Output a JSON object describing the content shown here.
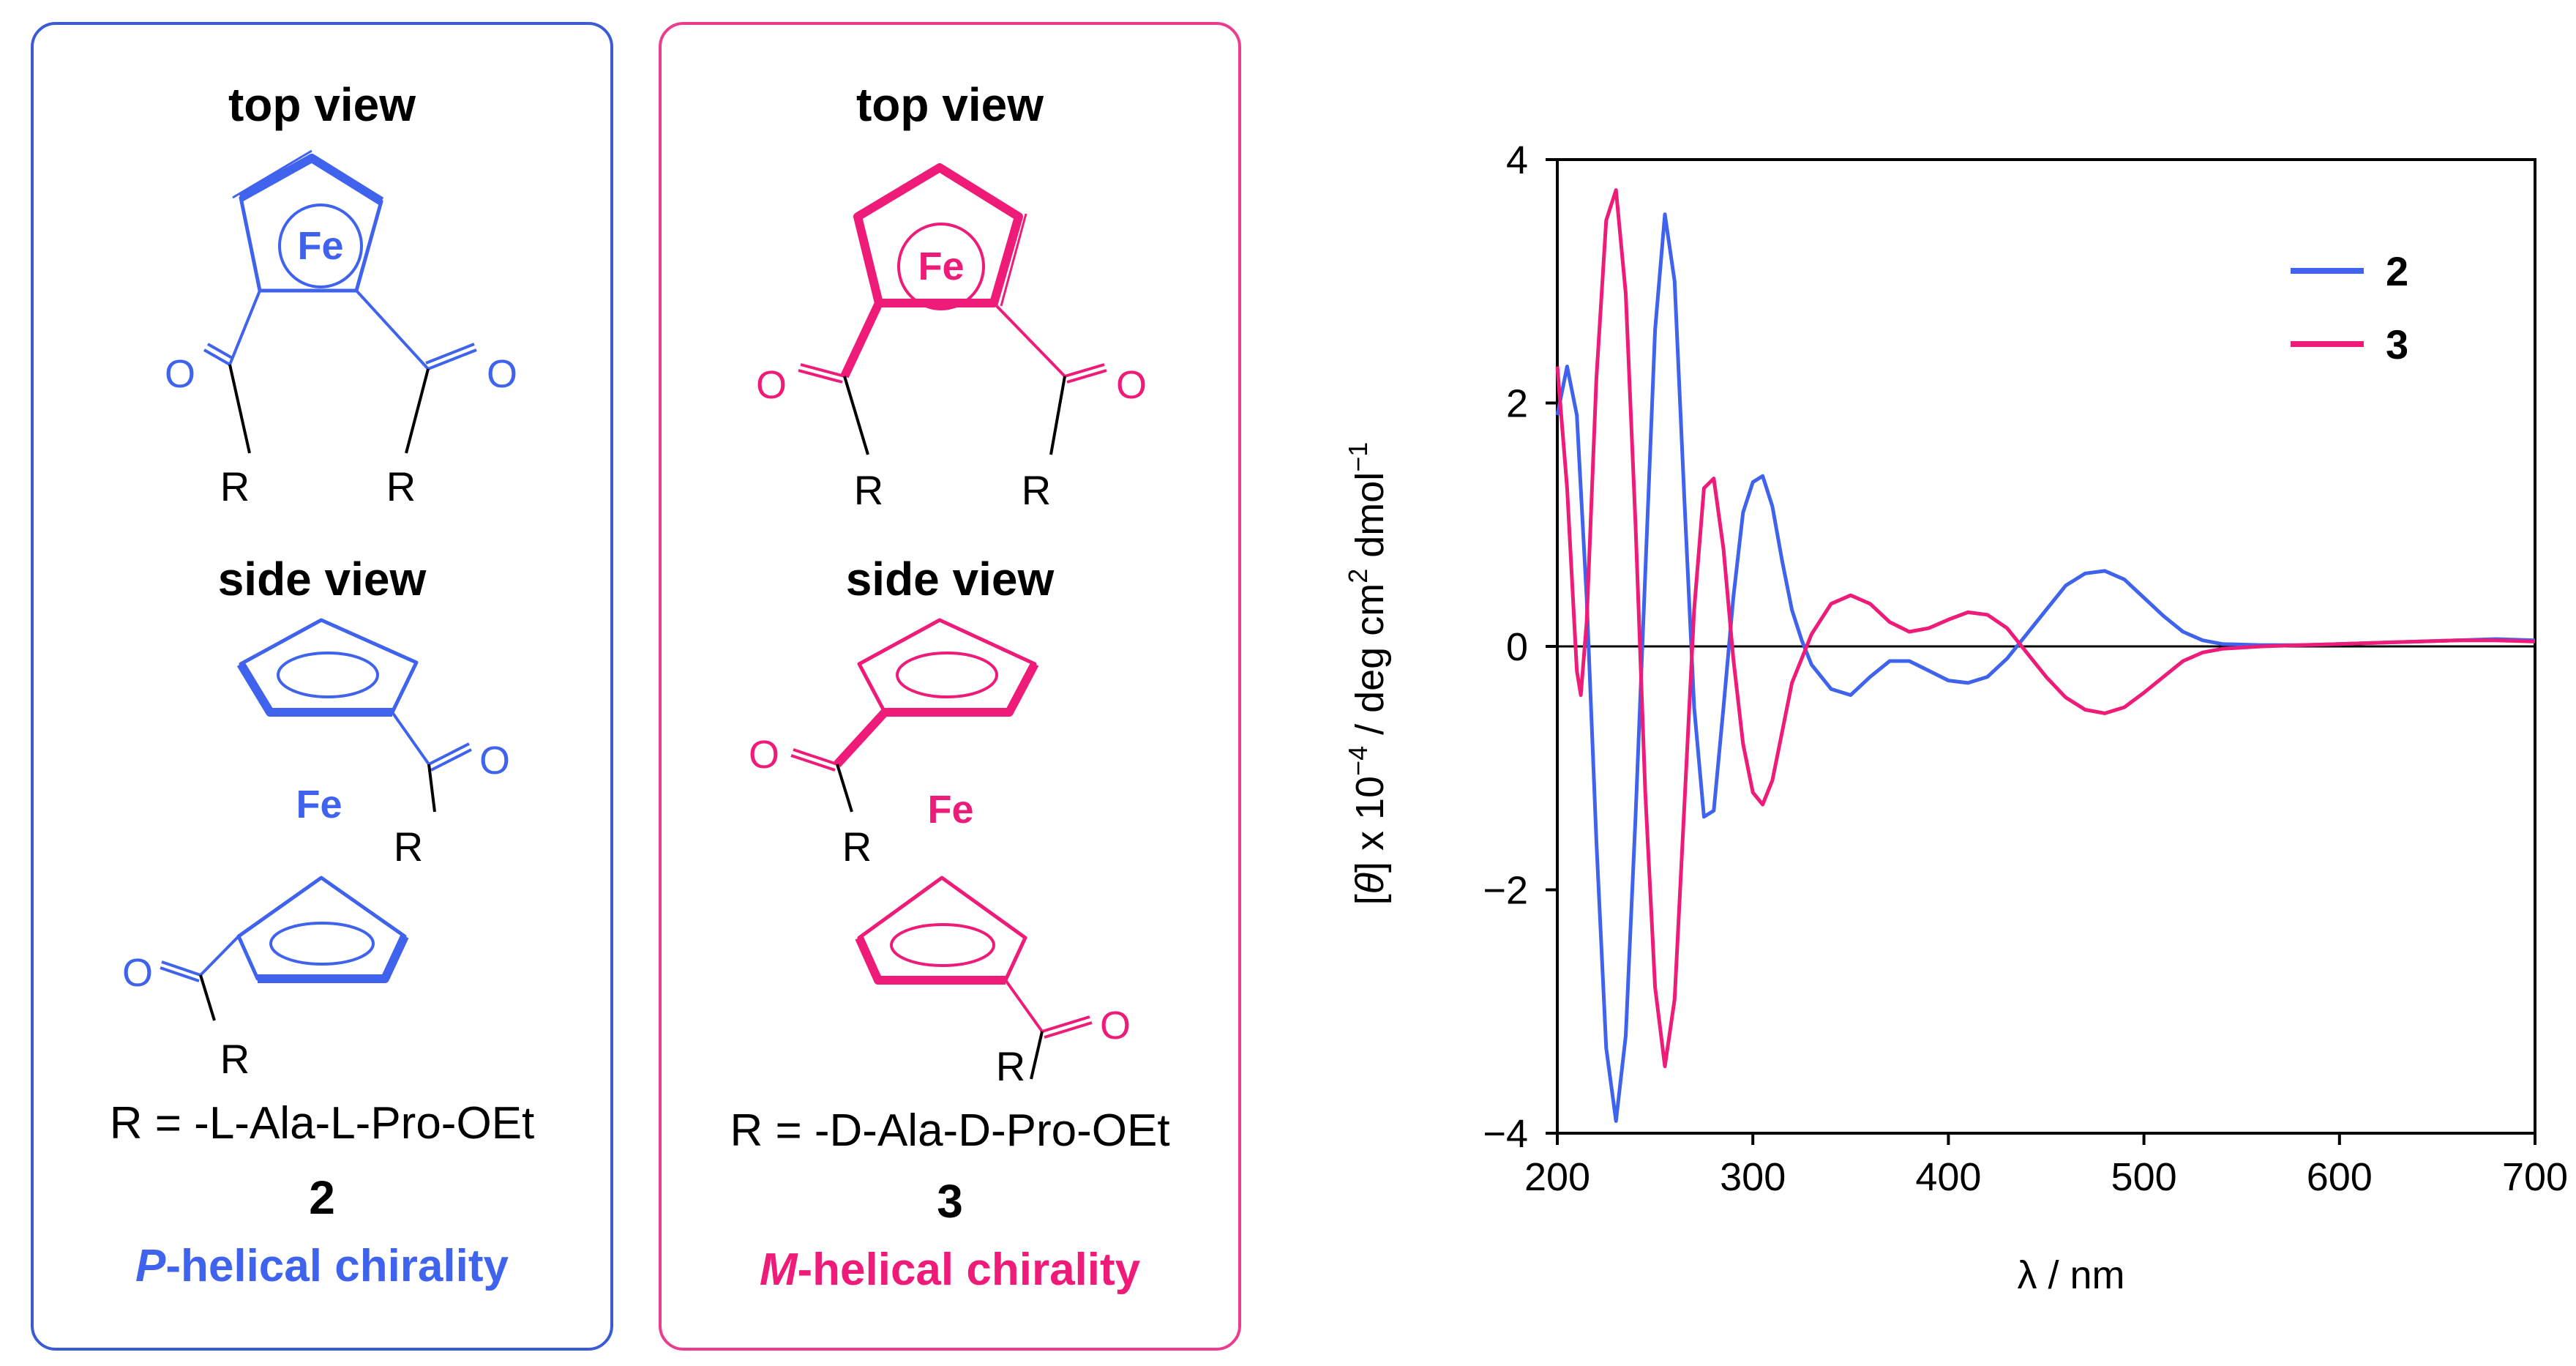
{
  "colors": {
    "blue": "#3f63ec",
    "pink": "#ee1c78",
    "blue_border": "#3a5ad6",
    "pink_border": "#ea3d8d"
  },
  "left_panel": {
    "top_view_label": "top view",
    "side_view_label": "side view",
    "fe_label": "Fe",
    "oxygen": "O",
    "r_group": "R",
    "r_definition": "R = -L-Ala-L-Pro-OEt",
    "compound_number": "2",
    "chirality_prefix": "P",
    "chirality_suffix": "-helical chirality"
  },
  "right_panel": {
    "top_view_label": "top view",
    "side_view_label": "side view",
    "fe_label": "Fe",
    "oxygen": "O",
    "r_group": "R",
    "r_definition": "R = -D-Ala-D-Pro-OEt",
    "compound_number": "3",
    "chirality_prefix": "M",
    "chirality_suffix": "-helical chirality"
  },
  "chart_data": {
    "type": "line",
    "title": "",
    "xlabel": "λ / nm",
    "ylabel_parts": [
      "[",
      "θ",
      "] x 10",
      "−4",
      " / deg cm",
      "2",
      " dmol",
      "−1"
    ],
    "xlim": [
      200,
      700
    ],
    "ylim": [
      -4,
      4
    ],
    "xticks": [
      200,
      300,
      400,
      500,
      600,
      700
    ],
    "yticks": [
      -4,
      -2,
      0,
      2,
      4
    ],
    "ytick_labels": [
      "−4",
      "−2",
      "0",
      "2",
      "4"
    ],
    "legend_position": "top-right",
    "series": [
      {
        "name": "2",
        "color": "#3f63ec",
        "points": [
          [
            200,
            1.9
          ],
          [
            205,
            2.3
          ],
          [
            210,
            1.9
          ],
          [
            215,
            0.4
          ],
          [
            220,
            -1.6
          ],
          [
            225,
            -3.3
          ],
          [
            230,
            -3.9
          ],
          [
            235,
            -3.2
          ],
          [
            240,
            -1.4
          ],
          [
            245,
            0.6
          ],
          [
            250,
            2.6
          ],
          [
            255,
            3.55
          ],
          [
            260,
            3.0
          ],
          [
            265,
            1.2
          ],
          [
            270,
            -0.5
          ],
          [
            275,
            -1.4
          ],
          [
            280,
            -1.35
          ],
          [
            285,
            -0.5
          ],
          [
            290,
            0.4
          ],
          [
            295,
            1.1
          ],
          [
            300,
            1.35
          ],
          [
            305,
            1.4
          ],
          [
            310,
            1.15
          ],
          [
            315,
            0.7
          ],
          [
            320,
            0.3
          ],
          [
            325,
            0.05
          ],
          [
            330,
            -0.15
          ],
          [
            340,
            -0.35
          ],
          [
            350,
            -0.4
          ],
          [
            360,
            -0.25
          ],
          [
            370,
            -0.12
          ],
          [
            380,
            -0.12
          ],
          [
            390,
            -0.2
          ],
          [
            400,
            -0.28
          ],
          [
            410,
            -0.3
          ],
          [
            420,
            -0.25
          ],
          [
            430,
            -0.1
          ],
          [
            440,
            0.1
          ],
          [
            450,
            0.3
          ],
          [
            460,
            0.5
          ],
          [
            470,
            0.6
          ],
          [
            480,
            0.62
          ],
          [
            490,
            0.55
          ],
          [
            500,
            0.4
          ],
          [
            510,
            0.25
          ],
          [
            520,
            0.12
          ],
          [
            530,
            0.05
          ],
          [
            540,
            0.02
          ],
          [
            560,
            0.01
          ],
          [
            580,
            0.01
          ],
          [
            600,
            0.02
          ],
          [
            620,
            0.03
          ],
          [
            640,
            0.04
          ],
          [
            660,
            0.05
          ],
          [
            680,
            0.06
          ],
          [
            700,
            0.05
          ]
        ]
      },
      {
        "name": "3",
        "color": "#ee1c78",
        "points": [
          [
            200,
            2.3
          ],
          [
            205,
            1.3
          ],
          [
            210,
            -0.2
          ],
          [
            212,
            -0.4
          ],
          [
            215,
            0.2
          ],
          [
            220,
            2.2
          ],
          [
            225,
            3.5
          ],
          [
            230,
            3.75
          ],
          [
            235,
            2.9
          ],
          [
            240,
            1.0
          ],
          [
            245,
            -1.2
          ],
          [
            250,
            -2.8
          ],
          [
            255,
            -3.45
          ],
          [
            260,
            -2.9
          ],
          [
            265,
            -1.3
          ],
          [
            270,
            0.3
          ],
          [
            275,
            1.3
          ],
          [
            280,
            1.38
          ],
          [
            285,
            0.8
          ],
          [
            290,
            -0.1
          ],
          [
            295,
            -0.8
          ],
          [
            300,
            -1.2
          ],
          [
            305,
            -1.3
          ],
          [
            310,
            -1.1
          ],
          [
            315,
            -0.7
          ],
          [
            320,
            -0.3
          ],
          [
            330,
            0.1
          ],
          [
            340,
            0.35
          ],
          [
            350,
            0.42
          ],
          [
            360,
            0.35
          ],
          [
            370,
            0.2
          ],
          [
            380,
            0.12
          ],
          [
            390,
            0.15
          ],
          [
            400,
            0.22
          ],
          [
            410,
            0.28
          ],
          [
            420,
            0.26
          ],
          [
            430,
            0.15
          ],
          [
            440,
            -0.05
          ],
          [
            450,
            -0.25
          ],
          [
            460,
            -0.42
          ],
          [
            470,
            -0.52
          ],
          [
            480,
            -0.55
          ],
          [
            490,
            -0.5
          ],
          [
            500,
            -0.38
          ],
          [
            510,
            -0.25
          ],
          [
            520,
            -0.12
          ],
          [
            530,
            -0.05
          ],
          [
            540,
            -0.02
          ],
          [
            560,
            0.0
          ],
          [
            580,
            0.01
          ],
          [
            600,
            0.02
          ],
          [
            620,
            0.03
          ],
          [
            640,
            0.04
          ],
          [
            660,
            0.05
          ],
          [
            680,
            0.05
          ],
          [
            700,
            0.04
          ]
        ]
      }
    ]
  }
}
